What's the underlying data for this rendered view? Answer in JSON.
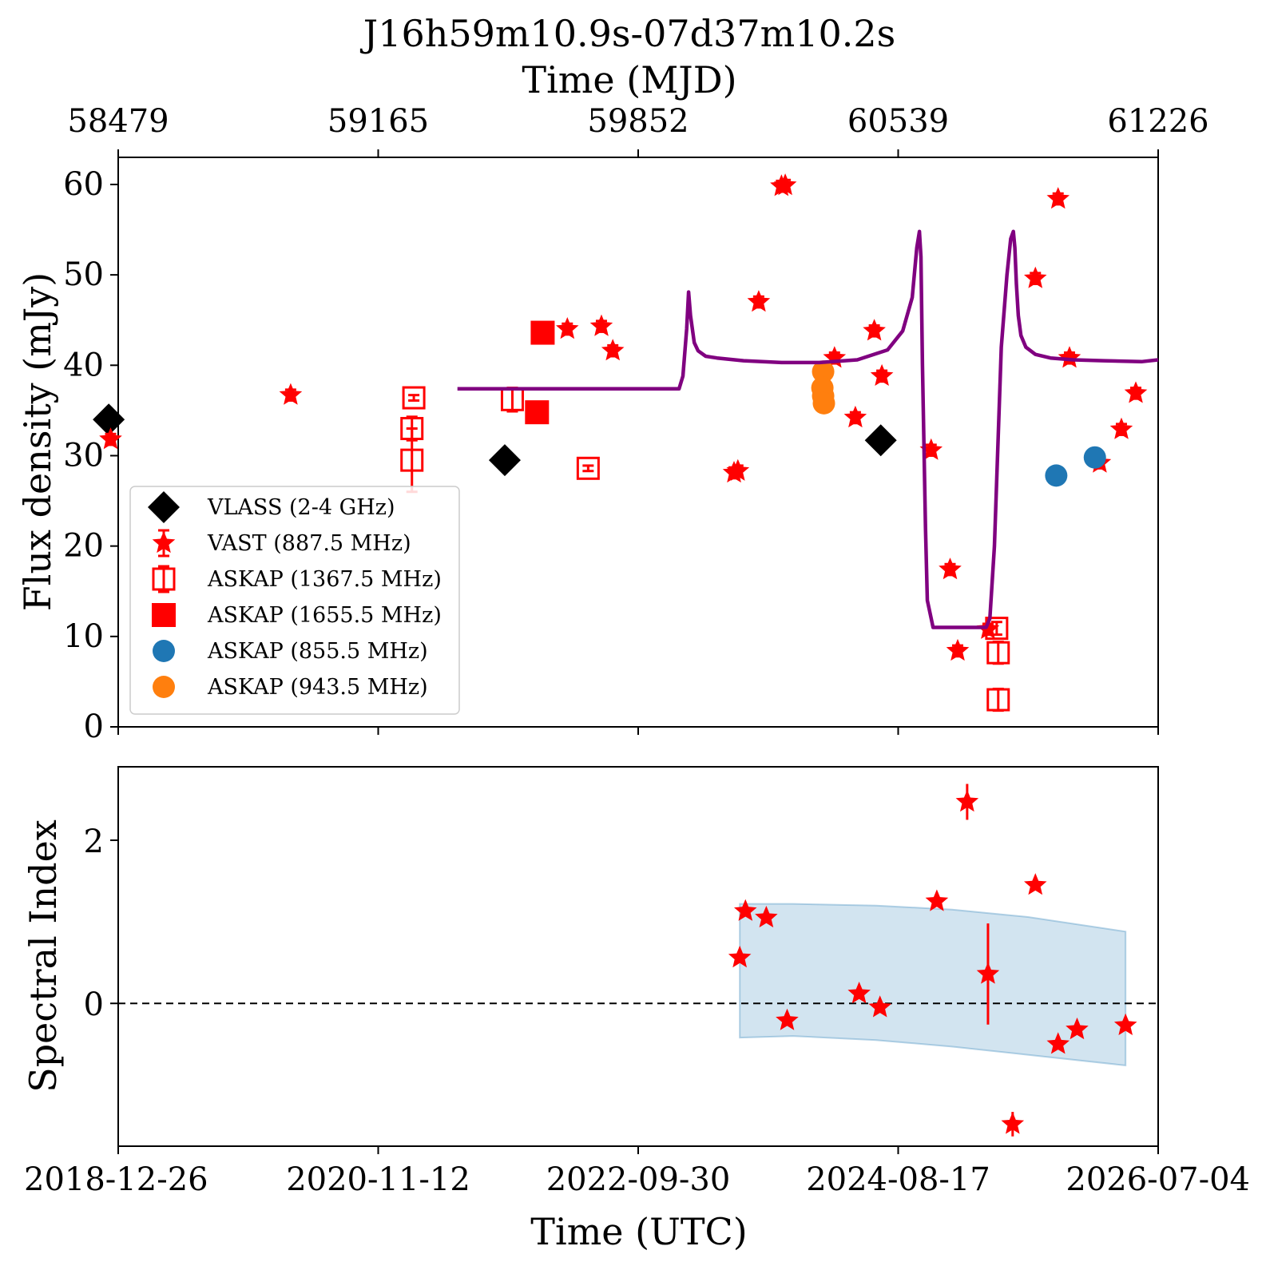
{
  "chart_data": [
    {
      "type": "scatter",
      "title": "J16h59m10.9s-07d37m10.2s",
      "xlabel": "",
      "ylabel": "Flux density (mJy)",
      "secondary_xlabel": "Time (MJD)",
      "secondary_xticks": [
        "58479",
        "59165",
        "59852",
        "60539",
        "61226"
      ],
      "xlim": [
        0,
        2744
      ],
      "ylim": [
        0,
        63
      ],
      "yticks": [
        0,
        10,
        20,
        30,
        40,
        50,
        60
      ],
      "legend": "lower-left",
      "series": [
        {
          "name": "VLASS (2-4 GHz)",
          "color": "#000000",
          "marker": "diamond",
          "x": [
            -25,
            1020,
            2012
          ],
          "y": [
            34,
            29.5,
            31.7
          ]
        },
        {
          "name": "VAST (887.5 MHz)",
          "color": "#ff0000",
          "marker": "star",
          "x": [
            -20,
            455,
            1185,
            1275,
            1305,
            1625,
            1635,
            1690,
            1750,
            1760,
            1890,
            1945,
            1995,
            2015,
            2145,
            2195,
            2215,
            2295,
            2420,
            2480,
            2510,
            2590,
            2647,
            2685
          ],
          "y": [
            31.8,
            36.7,
            44,
            44.3,
            41.6,
            28.1,
            28.3,
            47,
            59.8,
            59.9,
            40.8,
            34.2,
            43.8,
            38.8,
            30.6,
            17.4,
            8.4,
            10.8,
            49.6,
            58.4,
            40.8,
            29.2,
            32.9,
            36.9
          ],
          "err": [
            0.6,
            0.6,
            0.6,
            0.6,
            0.6,
            0.6,
            0.6,
            0.6,
            0.6,
            0.6,
            0.6,
            0.6,
            0.6,
            0.6,
            0.6,
            0.6,
            0.6,
            0.6,
            0.6,
            0.6,
            0.6,
            0.6,
            0.6,
            0.6
          ]
        },
        {
          "name": "ASKAP (1367.5 MHz)",
          "color": "#ff0000",
          "marker": "open-square",
          "x": [
            780,
            775,
            775,
            1040,
            1240,
            2318,
            2322,
            2322
          ],
          "y": [
            36.4,
            33,
            29.5,
            36.2,
            28.6,
            10.9,
            8.2,
            3
          ],
          "err": [
            0.3,
            1.3,
            3.5,
            1.3,
            0.3,
            0.7,
            1.2,
            1.2
          ]
        },
        {
          "name": "ASKAP (1655.5 MHz)",
          "color": "#ff0000",
          "marker": "square",
          "x": [
            1120,
            1105
          ],
          "y": [
            43.6,
            34.8
          ]
        },
        {
          "name": "ASKAP (855.5 MHz)",
          "color": "#1f77b4",
          "marker": "circle",
          "x": [
            2475,
            2577
          ],
          "y": [
            27.8,
            29.8
          ]
        },
        {
          "name": "ASKAP (943.5 MHz)",
          "color": "#ff7f0e",
          "marker": "circle",
          "x": [
            1860,
            1858,
            1860,
            1862
          ],
          "y": [
            39.3,
            37.5,
            36.6,
            35.8
          ]
        },
        {
          "name": "",
          "color": "#800080",
          "marker": "line",
          "x": [
            895,
            1480,
            1490,
            1500,
            1505,
            1510,
            1520,
            1530,
            1550,
            1580,
            1650,
            1750,
            1850,
            1950,
            2030,
            2070,
            2095,
            2107,
            2114,
            2118,
            2122,
            2130,
            2135,
            2150,
            2200,
            2250,
            2290,
            2300,
            2312,
            2330,
            2345,
            2355,
            2362,
            2366,
            2370,
            2375,
            2382,
            2395,
            2420,
            2460,
            2520,
            2600,
            2700,
            2744
          ],
          "y": [
            37.4,
            37.4,
            38.8,
            44,
            48.1,
            45.5,
            42.5,
            41.6,
            41,
            40.8,
            40.5,
            40.3,
            40.3,
            40.6,
            41.7,
            43.8,
            47.5,
            53,
            54.8,
            52,
            40,
            22,
            14,
            11,
            11,
            11,
            11,
            12,
            20,
            42,
            50,
            54,
            54.8,
            53,
            49,
            45.5,
            43.3,
            42,
            41.2,
            40.8,
            40.6,
            40.5,
            40.4,
            40.6
          ]
        }
      ]
    },
    {
      "type": "scatter",
      "xlabel": "Time (UTC)",
      "ylabel": "Spectral Index",
      "xlim": [
        0,
        2744
      ],
      "xticks": [
        "2018-12-26",
        "2020-11-12",
        "2022-09-30",
        "2024-08-17",
        "2026-07-04"
      ],
      "ylim": [
        -1.75,
        2.9
      ],
      "yticks": [
        0,
        2
      ],
      "reference_line": 0,
      "series": [
        {
          "name": "",
          "color": "#ff0000",
          "marker": "star",
          "x": [
            1640,
            1655,
            1710,
            1765,
            1955,
            2010,
            2160,
            2240,
            2295,
            2360,
            2420,
            2480,
            2530,
            2658
          ],
          "y": [
            0.56,
            1.13,
            1.05,
            -0.21,
            0.12,
            -0.05,
            1.25,
            2.47,
            0.36,
            -1.48,
            1.45,
            -0.5,
            -0.32,
            -0.27
          ],
          "err": [
            0,
            0,
            0,
            0,
            0,
            0,
            0,
            0.22,
            0.62,
            0.15,
            0,
            0,
            0,
            0
          ]
        },
        {
          "name": "",
          "color": "#1f77b4",
          "marker": "band",
          "x": [
            1640,
            1780,
            2000,
            2200,
            2400,
            2658
          ],
          "upper": [
            1.22,
            1.22,
            1.2,
            1.15,
            1.06,
            0.88
          ],
          "lower": [
            -0.42,
            -0.4,
            -0.45,
            -0.53,
            -0.63,
            -0.76
          ]
        }
      ]
    }
  ]
}
